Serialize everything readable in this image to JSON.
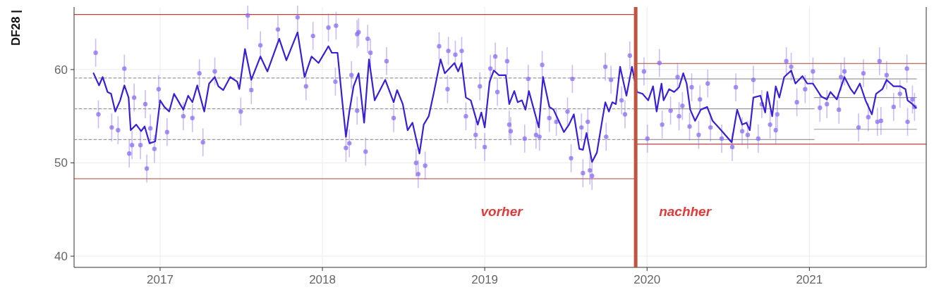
{
  "chart_data": {
    "type": "scatter",
    "ylabel": "DF28 |",
    "xlim": [
      2016.47,
      2021.72
    ],
    "xticks": [
      2017,
      2018,
      2019,
      2020,
      2021
    ],
    "ylim": [
      38.8,
      66.7
    ],
    "yticks": [
      40,
      50,
      60
    ],
    "grid": true,
    "ref_lines": [
      {
        "axis": "x",
        "value": 2019.93,
        "color": "#c0553f"
      }
    ],
    "annotations": [
      "vorher",
      "nachher"
    ],
    "series": [
      {
        "marker": "circle",
        "color": "#8a6cf0",
        "x": [
          2016.603,
          2016.62,
          2016.702,
          2016.741,
          2016.78,
          2016.81,
          2016.827,
          2016.84,
          2016.879,
          2016.909,
          2016.918,
          2016.94,
          2016.965,
          2016.991,
          2017.043,
          2017.143,
          2017.199,
          2017.242,
          2017.264,
          2017.337,
          2017.497,
          2017.54,
          2017.562,
          2017.618,
          2017.726,
          2017.847,
          2017.899,
          2017.942,
          2018.037,
          2018.084,
          2018.08,
          2018.145,
          2018.166,
          2018.214,
          2018.179,
          2018.223,
          2018.266,
          2018.279,
          2018.296,
          2018.214,
          2018.395,
          2018.439,
          2018.577,
          2018.59,
          2018.633,
          2018.719,
          2018.776,
          2018.819,
          2018.858,
          2018.771,
          2018.884,
          2018.944,
          2019.0,
          2018.97,
          2019.035,
          2019.065,
          2019.138,
          2019.078,
          2019.151,
          2019.16,
          2019.246,
          2019.268,
          2019.316,
          2019.337,
          2019.354,
          2019.398,
          2019.441,
          2019.51,
          2019.54,
          2019.532,
          2019.596,
          2019.605,
          2019.635,
          2019.648,
          2019.661,
          2019.748,
          2019.743,
          2019.778,
          2019.843,
          2019.864,
          2019.894,
          2019.981,
          2020.002,
          2020.076,
          2020.093,
          2020.145,
          2020.188,
          2020.197,
          2020.218,
          2020.275,
          2020.262,
          2020.318,
          2020.326,
          2020.374,
          2020.391,
          2020.46,
          2020.525,
          2020.547,
          2020.586,
          2020.62,
          2020.655,
          2020.685,
          2020.707,
          2020.758,
          2020.793,
          2020.802,
          2020.858,
          2020.888,
          2020.923,
          2020.974,
          2021.022,
          2021.065,
          2021.108,
          2021.182,
          2021.195,
          2021.216,
          2021.303,
          2021.333,
          2021.363,
          2021.419,
          2021.432,
          2021.441,
          2021.476,
          2021.519,
          2021.558,
          2021.601,
          2021.605,
          2021.635,
          2021.648
        ],
        "values": [
          61.8,
          55.2,
          53.8,
          53.5,
          60.1,
          51.0,
          51.9,
          57.0,
          51.9,
          56.3,
          49.4,
          53.7,
          51.5,
          57.9,
          53.3,
          55.0,
          54.8,
          59.6,
          52.2,
          59.8,
          55.5,
          65.8,
          57.8,
          62.6,
          64.3,
          65.6,
          58.2,
          63.6,
          64.5,
          64.7,
          58.7,
          51.6,
          52.1,
          63.8,
          59.4,
          64.0,
          51.2,
          63.3,
          61.8,
          55.6,
          60.9,
          54.8,
          50.0,
          48.8,
          49.7,
          62.5,
          62.0,
          61.6,
          62.0,
          57.9,
          55.0,
          53.0,
          51.7,
          58.2,
          60.1,
          61.4,
          60.9,
          57.6,
          54.1,
          53.4,
          52.6,
          59.0,
          53.0,
          52.8,
          60.5,
          54.8,
          54.4,
          55.5,
          59.0,
          50.5,
          53.8,
          48.9,
          54.4,
          49.2,
          48.6,
          52.8,
          60.3,
          58.9,
          56.7,
          55.2,
          61.5,
          59.8,
          52.6,
          60.7,
          54.1,
          55.6,
          59.2,
          55.0,
          56.1,
          58.1,
          53.9,
          53.0,
          56.8,
          58.5,
          53.8,
          52.6,
          51.7,
          58.1,
          53.4,
          53.0,
          58.9,
          52.6,
          56.3,
          54.1,
          53.5,
          55.2,
          60.9,
          60.3,
          56.5,
          57.9,
          59.8,
          55.9,
          56.3,
          55.7,
          59.2,
          59.8,
          53.8,
          59.6,
          54.9,
          54.4,
          60.9,
          54.5,
          59.4,
          56.0,
          57.4,
          60.1,
          54.4,
          56.8,
          56.0
        ],
        "errors": [
          1.5,
          1.5,
          1.5,
          1.5,
          1.5,
          1.5,
          1.5,
          1.5,
          1.5,
          1.5,
          1.5,
          1.5,
          1.5,
          1.5,
          1.5,
          1.5,
          1.5,
          1.5,
          1.5,
          1.5,
          1.5,
          1.5,
          1.5,
          1.5,
          1.5,
          1.5,
          1.5,
          1.5,
          1.5,
          1.5,
          1.5,
          1.5,
          1.5,
          1.5,
          1.5,
          1.5,
          1.5,
          1.5,
          1.5,
          1.5,
          1.5,
          1.5,
          1.5,
          1.5,
          1.5,
          1.5,
          1.5,
          1.5,
          1.5,
          1.5,
          1.5,
          1.5,
          1.5,
          1.5,
          1.5,
          1.5,
          1.5,
          1.5,
          1.5,
          1.5,
          1.5,
          1.5,
          1.5,
          1.5,
          1.5,
          1.5,
          1.5,
          1.5,
          1.5,
          1.5,
          1.5,
          1.5,
          1.5,
          1.5,
          1.5,
          1.5,
          1.5,
          1.5,
          1.5,
          1.5,
          1.5,
          1.5,
          1.5,
          1.5,
          1.5,
          1.5,
          1.5,
          1.5,
          1.5,
          1.5,
          1.5,
          1.5,
          1.5,
          1.5,
          1.5,
          1.5,
          1.5,
          1.5,
          1.5,
          1.5,
          1.5,
          1.5,
          1.5,
          1.5,
          1.5,
          1.5,
          1.5,
          1.5,
          1.5,
          1.5,
          1.5,
          1.5,
          1.5,
          1.5,
          1.5,
          1.5,
          1.5,
          1.5,
          1.5,
          1.5,
          1.5,
          1.5,
          1.5,
          1.5,
          1.5,
          1.5,
          1.5,
          1.5,
          1.5
        ]
      },
      {
        "type": "line",
        "color": "#3a1fd6",
        "x": [
          2016.59,
          2016.624,
          2016.646,
          2016.676,
          2016.698,
          2016.724,
          2016.754,
          2016.78,
          2016.806,
          2016.819,
          2016.853,
          2016.883,
          2016.905,
          2016.935,
          2016.97,
          2017.0,
          2017.026,
          2017.056,
          2017.086,
          2017.143,
          2017.173,
          2017.199,
          2017.229,
          2017.272,
          2017.302,
          2017.337,
          2017.359,
          2017.389,
          2017.432,
          2017.475,
          2017.488,
          2017.523,
          2017.562,
          2017.618,
          2017.661,
          2017.734,
          2017.778,
          2017.847,
          2017.89,
          2017.933,
          2017.976,
          2018.037,
          2018.058,
          2018.093,
          2018.123,
          2018.145,
          2018.166,
          2018.192,
          2018.223,
          2018.257,
          2018.287,
          2018.322,
          2018.352,
          2018.387,
          2018.439,
          2018.46,
          2018.495,
          2018.525,
          2018.555,
          2018.598,
          2018.624,
          2018.655,
          2018.685,
          2018.728,
          2018.754,
          2018.814,
          2018.836,
          2018.858,
          2018.884,
          2018.914,
          2018.957,
          2018.979,
          2019.0,
          2019.03,
          2019.056,
          2019.087,
          2019.13,
          2019.151,
          2019.182,
          2019.203,
          2019.229,
          2019.251,
          2019.272,
          2019.303,
          2019.333,
          2019.359,
          2019.398,
          2019.424,
          2019.488,
          2019.519,
          2019.549,
          2019.583,
          2019.605,
          2019.627,
          2019.661,
          2019.691,
          2019.726,
          2019.743,
          2019.765,
          2019.786,
          2019.808,
          2019.834,
          2019.873,
          2019.907,
          2019.938,
          2019.972,
          2020.007,
          2020.037,
          2020.059,
          2020.089,
          2020.102,
          2020.136,
          2020.167,
          2020.197,
          2020.223,
          2020.244,
          2020.266,
          2020.296,
          2020.331,
          2020.37,
          2020.404,
          2020.456,
          2020.521,
          2020.555,
          2020.586,
          2020.612,
          2020.633,
          2020.655,
          2020.698,
          2020.728,
          2020.741,
          2020.771,
          2020.793,
          2020.815,
          2020.845,
          2020.888,
          2020.914,
          2020.957,
          2020.987,
          2021.022,
          2021.074,
          2021.108,
          2021.13,
          2021.169,
          2021.216,
          2021.255,
          2021.277,
          2021.311,
          2021.346,
          2021.385,
          2021.411,
          2021.45,
          2021.476,
          2021.519,
          2021.562,
          2021.592,
          2021.605,
          2021.635,
          2021.657
        ],
        "values": [
          59.6,
          58.3,
          59.2,
          57.6,
          57.4,
          55.5,
          56.7,
          58.3,
          57.0,
          53.5,
          54.1,
          53.4,
          53.9,
          52.1,
          52.3,
          56.7,
          56.0,
          55.5,
          57.4,
          55.7,
          57.2,
          56.5,
          58.3,
          55.5,
          58.5,
          59.2,
          58.2,
          57.8,
          59.2,
          58.7,
          57.9,
          62.2,
          58.9,
          61.4,
          59.8,
          63.3,
          61.0,
          64.0,
          59.2,
          61.4,
          60.7,
          62.5,
          61.8,
          61.8,
          56.5,
          52.8,
          55.5,
          58.2,
          59.6,
          54.3,
          61.1,
          56.7,
          57.7,
          58.9,
          56.5,
          57.8,
          56.3,
          53.5,
          54.3,
          51.0,
          54.1,
          55.0,
          57.4,
          61.1,
          59.6,
          60.7,
          59.8,
          60.7,
          57.0,
          56.7,
          54.1,
          55.4,
          53.8,
          58.7,
          59.9,
          59.4,
          59.4,
          56.3,
          57.7,
          56.5,
          56.7,
          55.7,
          57.7,
          55.7,
          53.8,
          59.2,
          56.0,
          55.7,
          53.3,
          54.1,
          55.2,
          51.5,
          51.4,
          53.2,
          50.1,
          51.1,
          54.8,
          56.5,
          55.5,
          56.5,
          56.3,
          60.3,
          57.2,
          60.3,
          57.6,
          57.4,
          56.7,
          58.2,
          55.5,
          58.5,
          56.7,
          57.9,
          57.6,
          58.1,
          59.6,
          58.5,
          55.7,
          54.5,
          55.7,
          56.0,
          54.5,
          53.5,
          52.2,
          55.7,
          54.1,
          54.3,
          53.5,
          57.0,
          57.2,
          55.4,
          57.6,
          55.0,
          58.2,
          57.0,
          59.2,
          59.9,
          58.5,
          59.3,
          58.5,
          58.5,
          57.1,
          56.8,
          57.6,
          56.8,
          59.2,
          57.9,
          57.4,
          58.5,
          56.7,
          55.2,
          57.4,
          57.9,
          58.9,
          58.2,
          58.2,
          57.9,
          56.7,
          56.3,
          55.9
        ]
      },
      {
        "type": "line",
        "color": "#b5403a",
        "x": [
          2016.47,
          2019.93
        ],
        "values": [
          65.9,
          65.9
        ]
      },
      {
        "type": "line",
        "color": "#b5403a",
        "x": [
          2016.47,
          2019.93
        ],
        "values": [
          48.3,
          48.3
        ]
      },
      {
        "type": "line",
        "color": "#9a9a9a",
        "line_style": "dashed",
        "x": [
          2016.47,
          2019.93
        ],
        "values": [
          59.1,
          59.1
        ]
      },
      {
        "type": "line",
        "color": "#9a9a9a",
        "line_style": "dashed",
        "x": [
          2016.47,
          2019.93
        ],
        "values": [
          55.8,
          55.8
        ]
      },
      {
        "type": "line",
        "color": "#9a9a9a",
        "line_style": "dashed",
        "x": [
          2016.47,
          2019.93
        ],
        "values": [
          52.5,
          52.5
        ]
      },
      {
        "type": "line",
        "color": "#b5403a",
        "x": [
          2019.93,
          2021.72
        ],
        "values": [
          60.65,
          60.65
        ]
      },
      {
        "type": "line",
        "color": "#b5403a",
        "x": [
          2019.93,
          2021.72
        ],
        "values": [
          52.0,
          52.0
        ]
      },
      {
        "type": "line",
        "color": "#9a9a9a",
        "x": [
          2019.93,
          2021.66
        ],
        "values": [
          59.0,
          59.0
        ]
      },
      {
        "type": "line",
        "color": "#9a9a9a",
        "x": [
          2019.93,
          2021.03
        ],
        "values": [
          55.8,
          55.8
        ]
      },
      {
        "type": "line",
        "color": "#9a9a9a",
        "x": [
          2019.93,
          2021.03
        ],
        "values": [
          52.5,
          52.5
        ]
      },
      {
        "type": "line",
        "color": "#9a9a9a",
        "x": [
          2021.03,
          2021.66
        ],
        "values": [
          57.0,
          57.0
        ]
      },
      {
        "type": "line",
        "color": "#9a9a9a",
        "x": [
          2021.03,
          2021.66
        ],
        "values": [
          53.6,
          53.6
        ]
      }
    ]
  }
}
